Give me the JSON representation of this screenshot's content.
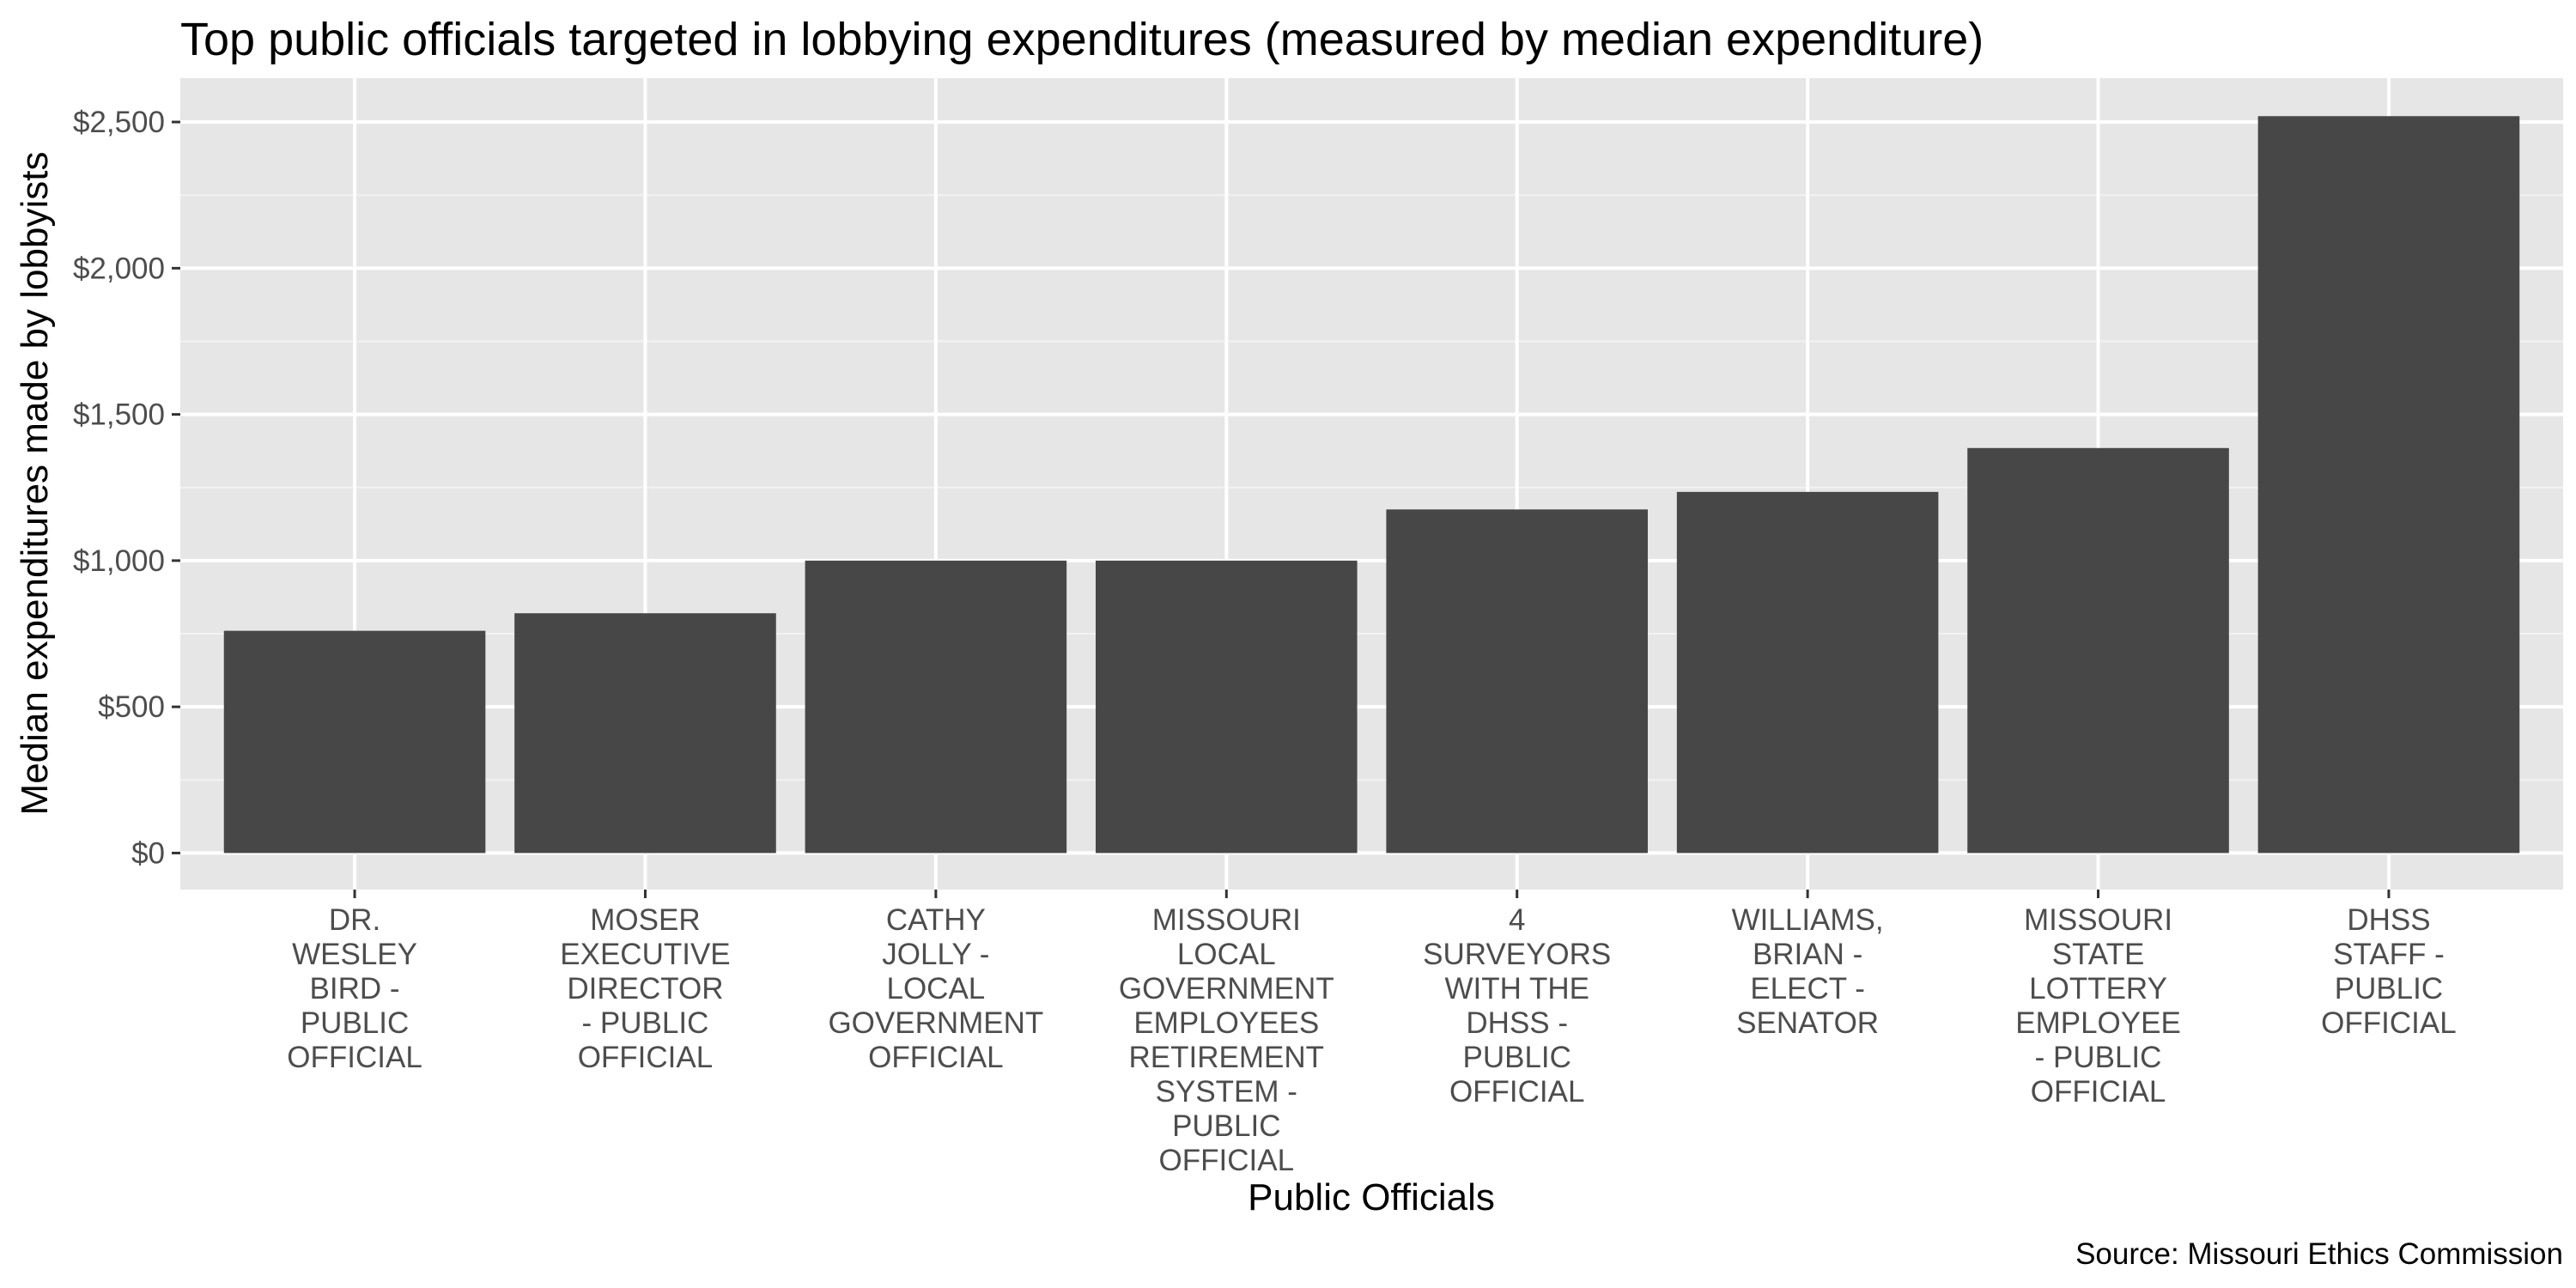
{
  "chart_data": {
    "type": "bar",
    "title": "Top public officials targeted in lobbying expenditures (measured by median expenditure)",
    "xlabel": "Public Officials",
    "ylabel": "Median expenditures made by lobbyists",
    "caption": "Source: Missouri Ethics Commission",
    "categories": [
      [
        "DR.",
        "WESLEY",
        "BIRD -",
        "PUBLIC",
        "OFFICIAL"
      ],
      [
        "MOSER",
        "EXECUTIVE",
        "DIRECTOR",
        "- PUBLIC",
        "OFFICIAL"
      ],
      [
        "CATHY",
        "JOLLY -",
        "LOCAL",
        "GOVERNMENT",
        "OFFICIAL"
      ],
      [
        "MISSOURI",
        "LOCAL",
        "GOVERNMENT",
        "EMPLOYEES",
        "RETIREMENT",
        "SYSTEM -",
        "PUBLIC",
        "OFFICIAL"
      ],
      [
        "4",
        "SURVEYORS",
        "WITH THE",
        "DHSS -",
        "PUBLIC",
        "OFFICIAL"
      ],
      [
        "WILLIAMS,",
        "BRIAN -",
        "ELECT -",
        "SENATOR"
      ],
      [
        "MISSOURI",
        "STATE",
        "LOTTERY",
        "EMPLOYEE",
        "- PUBLIC",
        "OFFICIAL"
      ],
      [
        "DHSS",
        "STAFF -",
        "PUBLIC",
        "OFFICIAL"
      ]
    ],
    "values": [
      760,
      820,
      1000,
      1000,
      1175,
      1235,
      1385,
      2520
    ],
    "ylim": [
      -125,
      2650
    ],
    "yticks": [
      0,
      500,
      1000,
      1500,
      2000,
      2500
    ],
    "ytick_labels": [
      "$0",
      "$500",
      "$1,000",
      "$1,500",
      "$2,000",
      "$2,500"
    ],
    "grid": true,
    "legend": "none",
    "colors": {
      "bar": "#474747",
      "panel": "#e6e6e6",
      "grid": "#ffffff"
    }
  }
}
